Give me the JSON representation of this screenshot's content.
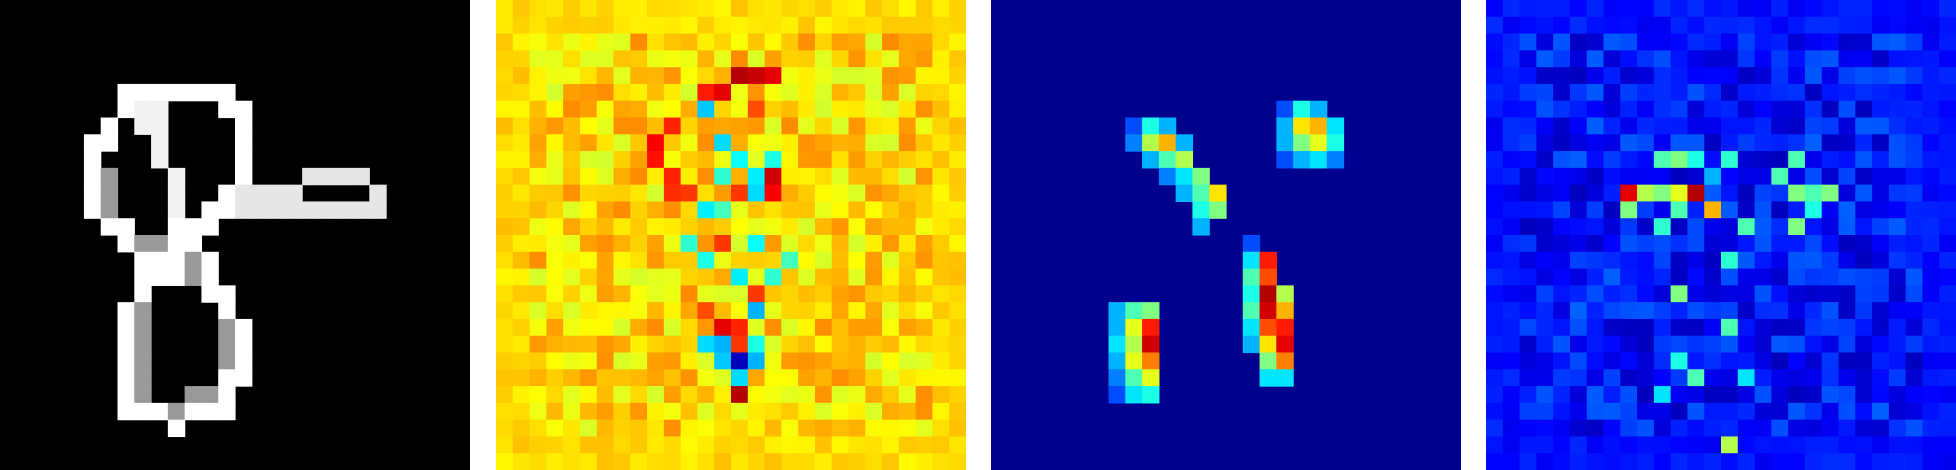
{
  "panels": [
    {
      "label": "",
      "colormap": "gray",
      "background": "#000000",
      "grid": 28,
      "strokes": [
        {
          "v": 1.0,
          "cells": [
            [
              8,
              5
            ],
            [
              9,
              5
            ],
            [
              10,
              5
            ],
            [
              11,
              5
            ],
            [
              12,
              5
            ],
            [
              13,
              5
            ],
            [
              13,
              6
            ],
            [
              14,
              6
            ],
            [
              14,
              7
            ],
            [
              14,
              8
            ],
            [
              14,
              9
            ],
            [
              14,
              10
            ],
            [
              13,
              11
            ],
            [
              13,
              12
            ],
            [
              12,
              12
            ],
            [
              12,
              13
            ],
            [
              11,
              13
            ],
            [
              10,
              13
            ],
            [
              10,
              14
            ],
            [
              10,
              15
            ],
            [
              9,
              15
            ],
            [
              8,
              15
            ],
            [
              7,
              14
            ],
            [
              7,
              13
            ],
            [
              6,
              13
            ],
            [
              5,
              12
            ],
            [
              5,
              11
            ],
            [
              5,
              10
            ],
            [
              5,
              9
            ],
            [
              5,
              8
            ],
            [
              6,
              8
            ],
            [
              6,
              7
            ],
            [
              7,
              6
            ],
            [
              7,
              5
            ]
          ]
        },
        {
          "v": 0.95,
          "cells": [
            [
              10,
              12
            ],
            [
              10,
              11
            ],
            [
              10,
              10
            ],
            [
              9,
              9
            ],
            [
              9,
              8
            ],
            [
              9,
              7
            ],
            [
              8,
              6
            ],
            [
              8,
              7
            ],
            [
              9,
              6
            ]
          ]
        },
        {
          "v": 0.9,
          "cells": [
            [
              14,
              11
            ],
            [
              15,
              11
            ],
            [
              16,
              11
            ],
            [
              17,
              11
            ],
            [
              18,
              10
            ],
            [
              19,
              10
            ],
            [
              20,
              10
            ],
            [
              21,
              10
            ],
            [
              22,
              11
            ],
            [
              22,
              12
            ],
            [
              21,
              12
            ],
            [
              20,
              12
            ],
            [
              19,
              12
            ],
            [
              18,
              12
            ],
            [
              17,
              12
            ],
            [
              16,
              12
            ],
            [
              15,
              12
            ],
            [
              14,
              12
            ]
          ]
        },
        {
          "v": 1.0,
          "cells": [
            [
              11,
              14
            ],
            [
              12,
              15
            ],
            [
              12,
              16
            ],
            [
              12,
              17
            ],
            [
              13,
              17
            ],
            [
              13,
              18
            ],
            [
              14,
              19
            ],
            [
              14,
              20
            ],
            [
              14,
              21
            ],
            [
              14,
              22
            ],
            [
              13,
              22
            ],
            [
              13,
              23
            ],
            [
              13,
              24
            ],
            [
              12,
              24
            ],
            [
              11,
              24
            ],
            [
              10,
              25
            ],
            [
              9,
              24
            ],
            [
              8,
              24
            ],
            [
              7,
              24
            ],
            [
              7,
              23
            ],
            [
              7,
              22
            ],
            [
              7,
              21
            ],
            [
              7,
              20
            ],
            [
              7,
              19
            ],
            [
              7,
              18
            ],
            [
              8,
              17
            ],
            [
              8,
              16
            ],
            [
              9,
              16
            ],
            [
              10,
              16
            ],
            [
              10,
              15
            ]
          ]
        },
        {
          "v": 0.6,
          "cells": [
            [
              6,
              10
            ],
            [
              6,
              11
            ],
            [
              6,
              12
            ],
            [
              8,
              14
            ],
            [
              9,
              14
            ],
            [
              11,
              15
            ],
            [
              11,
              16
            ],
            [
              8,
              18
            ],
            [
              8,
              19
            ],
            [
              8,
              20
            ],
            [
              8,
              21
            ],
            [
              8,
              22
            ],
            [
              8,
              23
            ],
            [
              13,
              19
            ],
            [
              13,
              20
            ],
            [
              13,
              21
            ],
            [
              12,
              23
            ],
            [
              10,
              24
            ],
            [
              11,
              23
            ]
          ]
        }
      ]
    },
    {
      "label": "",
      "colormap": "jet",
      "background": "#f0f410",
      "grid": 28,
      "seed": 17,
      "base": 0.66,
      "hot": [
        [
          14,
          4,
          0.95
        ],
        [
          15,
          4,
          0.93
        ],
        [
          16,
          4,
          0.9
        ],
        [
          13,
          5,
          0.9
        ],
        [
          12,
          5,
          0.85
        ],
        [
          10,
          7,
          0.84
        ],
        [
          9,
          8,
          0.88
        ],
        [
          9,
          9,
          0.86
        ],
        [
          10,
          10,
          0.84
        ],
        [
          10,
          11,
          0.83
        ],
        [
          11,
          11,
          0.82
        ],
        [
          15,
          6,
          0.8
        ],
        [
          16,
          10,
          0.92
        ],
        [
          16,
          11,
          0.88
        ],
        [
          14,
          11,
          0.82
        ],
        [
          13,
          14,
          0.82
        ],
        [
          13,
          19,
          0.9
        ],
        [
          14,
          19,
          0.84
        ],
        [
          14,
          20,
          0.82
        ],
        [
          14,
          23,
          0.95
        ],
        [
          12,
          18,
          0.8
        ],
        [
          15,
          17,
          0.82
        ]
      ],
      "cool": [
        [
          12,
          6,
          0.32
        ],
        [
          13,
          8,
          0.34
        ],
        [
          14,
          9,
          0.38
        ],
        [
          15,
          10,
          0.36
        ],
        [
          16,
          9,
          0.4
        ],
        [
          15,
          11,
          0.34
        ],
        [
          12,
          12,
          0.36
        ],
        [
          13,
          10,
          0.42
        ],
        [
          13,
          12,
          0.44
        ],
        [
          15,
          14,
          0.38
        ],
        [
          14,
          16,
          0.36
        ],
        [
          15,
          18,
          0.3
        ],
        [
          13,
          20,
          0.3
        ],
        [
          14,
          21,
          0.06
        ],
        [
          15,
          21,
          0.3
        ],
        [
          13,
          21,
          0.32
        ],
        [
          12,
          20,
          0.34
        ],
        [
          14,
          22,
          0.34
        ],
        [
          15,
          20,
          0.4
        ],
        [
          12,
          15,
          0.4
        ],
        [
          11,
          14,
          0.42
        ],
        [
          16,
          16,
          0.42
        ],
        [
          17,
          15,
          0.44
        ]
      ]
    },
    {
      "label": "",
      "colormap": "jet",
      "background": "#00008f",
      "grid": 28,
      "blobs": [
        {
          "cells": [
            [
              8,
              7,
              0.2
            ],
            [
              9,
              7,
              0.4
            ],
            [
              10,
              7,
              0.3
            ],
            [
              8,
              8,
              0.25
            ],
            [
              9,
              8,
              0.55
            ],
            [
              10,
              8,
              0.7
            ],
            [
              11,
              8,
              0.3
            ],
            [
              9,
              9,
              0.3
            ],
            [
              10,
              9,
              0.45
            ],
            [
              11,
              9,
              0.55
            ],
            [
              10,
              10,
              0.25
            ],
            [
              11,
              10,
              0.35
            ],
            [
              12,
              10,
              0.5
            ],
            [
              11,
              11,
              0.3
            ],
            [
              12,
              11,
              0.45
            ],
            [
              13,
              11,
              0.65
            ],
            [
              12,
              12,
              0.4
            ],
            [
              13,
              12,
              0.5
            ],
            [
              12,
              13,
              0.3
            ]
          ]
        },
        {
          "cells": [
            [
              17,
              6,
              0.2
            ],
            [
              18,
              6,
              0.4
            ],
            [
              19,
              6,
              0.3
            ],
            [
              17,
              7,
              0.3
            ],
            [
              18,
              7,
              0.65
            ],
            [
              19,
              7,
              0.7
            ],
            [
              20,
              7,
              0.35
            ],
            [
              17,
              8,
              0.3
            ],
            [
              18,
              8,
              0.5
            ],
            [
              19,
              8,
              0.6
            ],
            [
              20,
              8,
              0.4
            ],
            [
              17,
              9,
              0.2
            ],
            [
              18,
              9,
              0.3
            ],
            [
              19,
              9,
              0.35
            ],
            [
              20,
              9,
              0.25
            ]
          ]
        },
        {
          "cells": [
            [
              15,
              14,
              0.2
            ],
            [
              15,
              15,
              0.35
            ],
            [
              16,
              15,
              0.85
            ],
            [
              16,
              16,
              0.8
            ],
            [
              15,
              16,
              0.45
            ],
            [
              16,
              17,
              0.95
            ],
            [
              17,
              17,
              0.55
            ],
            [
              15,
              17,
              0.4
            ],
            [
              16,
              18,
              0.92
            ],
            [
              17,
              18,
              0.7
            ],
            [
              15,
              18,
              0.45
            ],
            [
              16,
              19,
              0.8
            ],
            [
              17,
              19,
              0.85
            ],
            [
              15,
              19,
              0.35
            ],
            [
              16,
              20,
              0.65
            ],
            [
              17,
              20,
              0.9
            ],
            [
              15,
              20,
              0.3
            ],
            [
              16,
              21,
              0.5
            ],
            [
              17,
              21,
              0.75
            ],
            [
              16,
              22,
              0.35
            ],
            [
              17,
              22,
              0.35
            ]
          ]
        },
        {
          "cells": [
            [
              7,
              18,
              0.3
            ],
            [
              8,
              18,
              0.45
            ],
            [
              9,
              18,
              0.5
            ],
            [
              7,
              19,
              0.3
            ],
            [
              8,
              19,
              0.6
            ],
            [
              9,
              19,
              0.85
            ],
            [
              7,
              20,
              0.35
            ],
            [
              8,
              20,
              0.55
            ],
            [
              9,
              20,
              0.92
            ],
            [
              7,
              21,
              0.3
            ],
            [
              8,
              21,
              0.6
            ],
            [
              9,
              21,
              0.75
            ],
            [
              7,
              22,
              0.25
            ],
            [
              8,
              22,
              0.45
            ],
            [
              9,
              22,
              0.6
            ],
            [
              7,
              23,
              0.2
            ],
            [
              8,
              23,
              0.35
            ],
            [
              9,
              23,
              0.4
            ]
          ]
        }
      ]
    },
    {
      "label": "",
      "colormap": "jet",
      "background": "#0000c8",
      "grid": 28,
      "seed": 29,
      "base": 0.14,
      "hot": [
        [
          8,
          11,
          0.9
        ],
        [
          9,
          11,
          0.55
        ],
        [
          10,
          11,
          0.5
        ],
        [
          11,
          11,
          0.6
        ],
        [
          12,
          11,
          0.95
        ],
        [
          13,
          12,
          0.7
        ],
        [
          11,
          12,
          0.45
        ],
        [
          8,
          12,
          0.5
        ],
        [
          18,
          11,
          0.5
        ],
        [
          19,
          11,
          0.45
        ],
        [
          20,
          11,
          0.5
        ],
        [
          19,
          12,
          0.4
        ],
        [
          18,
          13,
          0.5
        ],
        [
          17,
          10,
          0.45
        ],
        [
          10,
          9,
          0.45
        ],
        [
          11,
          9,
          0.5
        ],
        [
          12,
          9,
          0.4
        ],
        [
          14,
          9,
          0.42
        ],
        [
          18,
          9,
          0.45
        ],
        [
          10,
          13,
          0.42
        ],
        [
          15,
          13,
          0.45
        ],
        [
          14,
          15,
          0.42
        ],
        [
          11,
          17,
          0.5
        ],
        [
          14,
          19,
          0.45
        ],
        [
          11,
          21,
          0.4
        ],
        [
          12,
          22,
          0.45
        ],
        [
          15,
          22,
          0.35
        ],
        [
          14,
          26,
          0.55
        ],
        [
          10,
          23,
          0.35
        ],
        [
          13,
          10,
          0.3
        ]
      ]
    }
  ]
}
